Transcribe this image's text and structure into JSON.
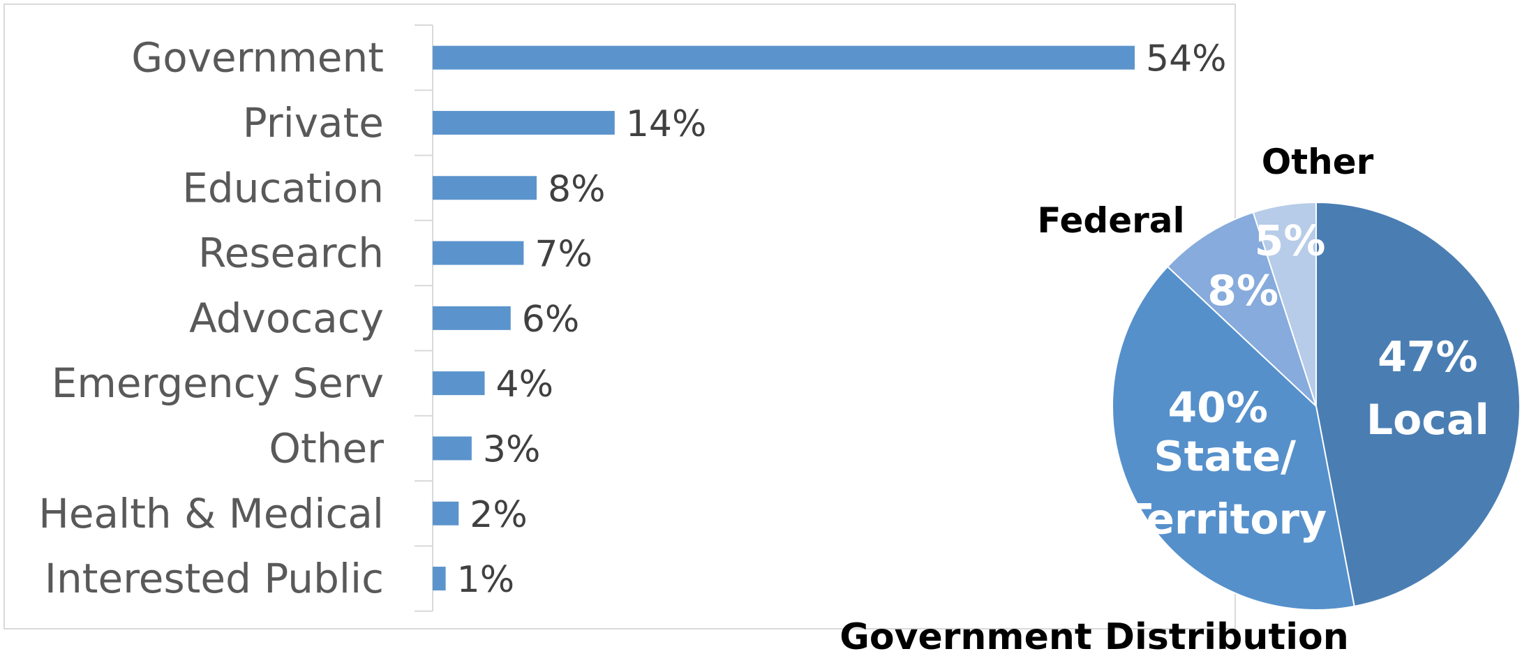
{
  "chart_data": [
    {
      "type": "bar",
      "orientation": "horizontal",
      "categories": [
        "Government",
        "Private",
        "Education",
        "Research",
        "Advocacy",
        "Emergency Serv",
        "Other",
        "Health & Medical",
        "Interested Public"
      ],
      "values": [
        54,
        14,
        8,
        7,
        6,
        4,
        3,
        2,
        1
      ],
      "value_labels": [
        "54%",
        "14%",
        "8%",
        "7%",
        "6%",
        "4%",
        "3%",
        "2%",
        "1%"
      ],
      "xlim": [
        0,
        56
      ],
      "grid": false,
      "bar_color": "#5b94cc"
    },
    {
      "type": "pie",
      "title": "Government Distribution",
      "slices": [
        {
          "name": "Local",
          "value": 47,
          "label": "47%",
          "color": "#4a7eb3"
        },
        {
          "name": "State/ Territory",
          "value": 40,
          "label": "40%",
          "color": "#5590cb"
        },
        {
          "name": "Federal",
          "value": 8,
          "label": "8%",
          "color": "#86abdc"
        },
        {
          "name": "Other",
          "value": 5,
          "label": "5%",
          "color": "#b6cce8"
        }
      ],
      "name_lines": {
        "State/ Territory": [
          "State/",
          "Territory"
        ]
      }
    }
  ],
  "colors": {
    "frame": "#d9d9d9",
    "axis": "#d9d9d9"
  }
}
